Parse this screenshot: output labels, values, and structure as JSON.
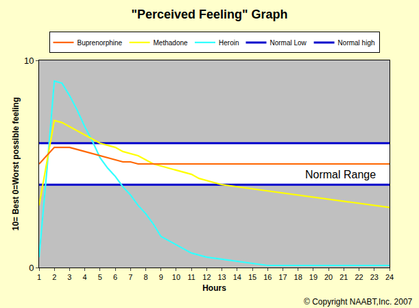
{
  "chart_data": {
    "type": "line",
    "title": "\"Perceived Feeling\" Graph",
    "x_label": "Hours",
    "y_label": "10= Best 0=Worst possible feeling",
    "annotations": [
      "Normal Range",
      "© Copyright NAABT,Inc. 2007"
    ],
    "x": [
      1,
      1.5,
      2,
      2.5,
      3,
      3.5,
      4,
      4.5,
      5,
      5.5,
      6,
      6.5,
      7,
      7.5,
      8,
      8.5,
      9,
      9.5,
      10,
      10.5,
      11,
      11.5,
      12,
      13,
      14,
      15,
      16,
      17,
      18,
      19,
      20,
      21,
      22,
      23,
      24
    ],
    "series": [
      {
        "name": "Normal high",
        "color": "#0000cc",
        "values": [
          6,
          6,
          6,
          6,
          6,
          6,
          6,
          6,
          6,
          6,
          6,
          6,
          6,
          6,
          6,
          6,
          6,
          6,
          6,
          6,
          6,
          6,
          6,
          6,
          6,
          6,
          6,
          6,
          6,
          6,
          6,
          6,
          6,
          6,
          6
        ]
      },
      {
        "name": "Normal Low",
        "color": "#0000cc",
        "values": [
          4,
          4,
          4,
          4,
          4,
          4,
          4,
          4,
          4,
          4,
          4,
          4,
          4,
          4,
          4,
          4,
          4,
          4,
          4,
          4,
          4,
          4,
          4,
          4,
          4,
          4,
          4,
          4,
          4,
          4,
          4,
          4,
          4,
          4,
          4
        ]
      },
      {
        "name": "Heroin",
        "color": "#33ffff",
        "values": [
          0.5,
          4.6,
          9.0,
          8.9,
          8.3,
          7.6,
          6.8,
          6.1,
          5.3,
          4.8,
          4.4,
          3.9,
          3.5,
          3.0,
          2.6,
          2.1,
          1.5,
          1.3,
          1.1,
          0.9,
          0.7,
          0.6,
          0.5,
          0.4,
          0.3,
          0.2,
          0.1,
          0.1,
          0.1,
          0.1,
          0.1,
          0.1,
          0.1,
          0.1,
          0.1
        ]
      },
      {
        "name": "Methadone",
        "color": "#ffff00",
        "values": [
          3.0,
          5.0,
          7.1,
          7.0,
          6.8,
          6.6,
          6.4,
          6.2,
          6.0,
          5.9,
          5.8,
          5.6,
          5.5,
          5.4,
          5.2,
          5.0,
          4.9,
          4.8,
          4.7,
          4.6,
          4.5,
          4.3,
          4.2,
          4.0,
          3.9,
          3.8,
          3.7,
          3.6,
          3.5,
          3.4,
          3.3,
          3.2,
          3.1,
          3.0,
          2.9
        ]
      },
      {
        "name": "Buprenorphine",
        "color": "#ff6600",
        "values": [
          5.0,
          5.4,
          5.8,
          5.8,
          5.8,
          5.7,
          5.6,
          5.5,
          5.4,
          5.3,
          5.2,
          5.1,
          5.1,
          5.0,
          5.0,
          5.0,
          5.0,
          5.0,
          5.0,
          5.0,
          5.0,
          5.0,
          5.0,
          5.0,
          5.0,
          5.0,
          5.0,
          5.0,
          5.0,
          5.0,
          5.0,
          5.0,
          5.0,
          5.0,
          5.0
        ]
      }
    ],
    "xlim": [
      1,
      24
    ],
    "xticks": [
      1,
      2,
      3,
      4,
      5,
      6,
      7,
      8,
      9,
      10,
      11,
      12,
      13,
      14,
      15,
      16,
      17,
      18,
      19,
      20,
      21,
      22,
      23,
      24
    ],
    "ylim": [
      0,
      10
    ],
    "yticks": [
      0,
      10
    ],
    "grid": false,
    "legend": "top"
  }
}
